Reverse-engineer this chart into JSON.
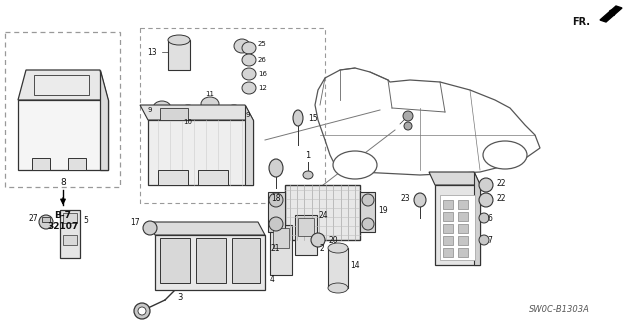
{
  "bg_color": "#ffffff",
  "dc": "#333333",
  "lc": "#555555",
  "dash": "#666666",
  "fig_width": 6.4,
  "fig_height": 3.2,
  "watermark": "SW0C-B1303A",
  "dpi": 100
}
